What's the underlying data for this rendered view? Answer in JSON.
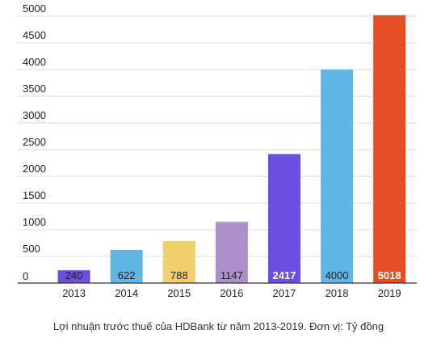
{
  "chart_data": {
    "type": "bar",
    "categories": [
      "2013",
      "2014",
      "2015",
      "2016",
      "2017",
      "2018",
      "2019"
    ],
    "values": [
      240,
      622,
      788,
      1147,
      2417,
      4000,
      5018
    ],
    "data_labels": [
      "240",
      "622",
      "788",
      "1147",
      "2417",
      "4000",
      "5018"
    ],
    "colors": [
      "#6a4fe0",
      "#60b6e4",
      "#f0cf6c",
      "#ac90cc",
      "#6a4fe0",
      "#60b6e4",
      "#e44e24"
    ],
    "label_colors": [
      "#222222",
      "#222222",
      "#222222",
      "#222222",
      "#ffffff",
      "#222222",
      "#ffffff"
    ],
    "yticks": [
      0,
      500,
      1000,
      1500,
      2000,
      2500,
      3000,
      3500,
      4000,
      4500,
      5000
    ],
    "ylim": [
      0,
      5000
    ],
    "grid": true,
    "title": "",
    "xlabel": "",
    "ylabel": ""
  },
  "caption": "Lợi nhuận trước thuế của HDBank từ năm 2013-2019. Đơn vị: Tỷ đồng"
}
